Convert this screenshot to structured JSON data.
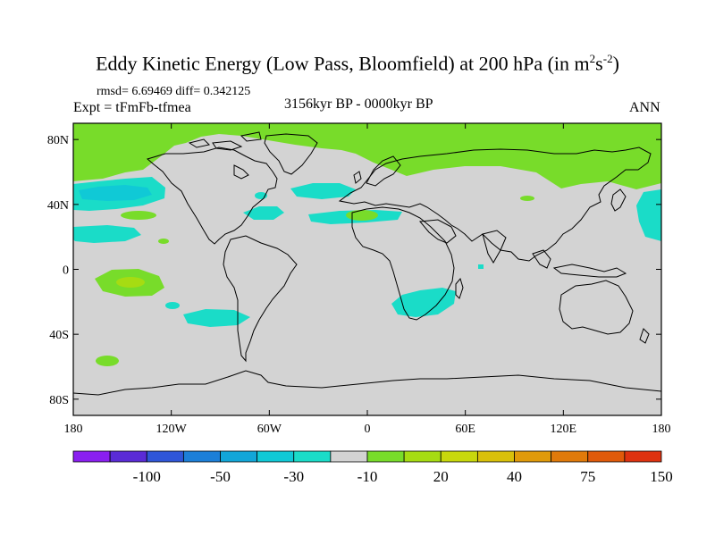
{
  "title": {
    "prefix": "Eddy Kinetic Energy (Low Pass, Bloomfield) at 200 hPa (in m",
    "sup1": "2",
    "mid": "s",
    "sup2": "-2",
    "suffix": ")"
  },
  "stats": "rmsd= 6.69469 diff= 0.342125",
  "expt": "Expt = tFmFb-tfmea",
  "period": "3156kyr BP - 0000kyr BP",
  "season": "ANN",
  "lon_ticks": [
    "180",
    "120W",
    "60W",
    "0",
    "60E",
    "120E",
    "180"
  ],
  "lat_ticks": [
    "80N",
    "40N",
    "0",
    "40S",
    "80S"
  ],
  "colorbar": {
    "colors": [
      "#8a1ff0",
      "#5a2bd6",
      "#2f56d8",
      "#1c7fd8",
      "#12a6d8",
      "#10c9d6",
      "#1adcc8",
      "#d3d3d3",
      "#78dc2a",
      "#a6dc12",
      "#c8d80c",
      "#d9c00a",
      "#e09a0a",
      "#e07a0a",
      "#e05a0a",
      "#de3210"
    ],
    "labels": [
      "-100",
      "-50",
      "-30",
      "-10",
      "20",
      "40",
      "75",
      "150"
    ]
  },
  "colors": {
    "ocean_background": "#d3d3d3",
    "positive_anomaly": "#78dc2a",
    "strong_positive_anomaly": "#a6dc12",
    "negative_anomaly": "#1adcc8",
    "strong_negative_anomaly": "#10c9d6"
  }
}
